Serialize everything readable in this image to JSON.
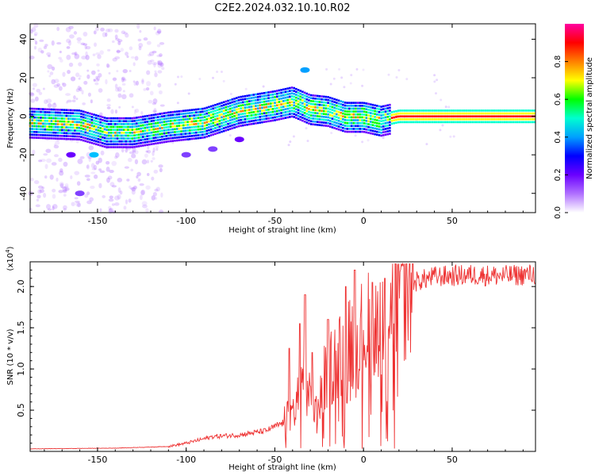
{
  "title": "C2E2.2024.032.10.10.R02",
  "chart_data": [
    {
      "type": "heatmap",
      "title": "C2E2.2024.032.10.10.R02",
      "xlabel": "Height of straight line (km)",
      "ylabel": "Frequency (Hz)",
      "xlim": [
        -188,
        97
      ],
      "ylim": [
        -50,
        48
      ],
      "xticks": [
        -150,
        -100,
        -50,
        0,
        50
      ],
      "xtick_labels": [
        "-150",
        "-100",
        "-50",
        "0",
        "50"
      ],
      "yticks": [
        -40,
        -20,
        0,
        20,
        40
      ],
      "ytick_labels": [
        "-40",
        "-20",
        "0",
        "20",
        "40"
      ],
      "colorbar": {
        "label": "Normalized spectral amplitude",
        "ticks": [
          0.0,
          0.2,
          0.4,
          0.6,
          0.8
        ],
        "tick_labels": [
          "0.0",
          "0.2",
          "0.4",
          "0.6",
          "0.8"
        ],
        "range": [
          0,
          1
        ],
        "colors": [
          "#ffffff",
          "#b070ff",
          "#6a00ff",
          "#0000ff",
          "#00a0ff",
          "#00ffd0",
          "#00ff00",
          "#ffff00",
          "#ff8000",
          "#ff0000",
          "#ff00a0"
        ]
      },
      "ridge": [
        {
          "x": -188,
          "y": -3
        },
        {
          "x": -160,
          "y": -4
        },
        {
          "x": -145,
          "y": -8
        },
        {
          "x": -130,
          "y": -8
        },
        {
          "x": -110,
          "y": -5
        },
        {
          "x": -90,
          "y": -3
        },
        {
          "x": -70,
          "y": 3
        },
        {
          "x": -50,
          "y": 6
        },
        {
          "x": -40,
          "y": 8
        },
        {
          "x": -30,
          "y": 4
        },
        {
          "x": -20,
          "y": 3
        },
        {
          "x": -10,
          "y": 0
        },
        {
          "x": 0,
          "y": 0
        },
        {
          "x": 10,
          "y": -2
        },
        {
          "x": 20,
          "y": 0
        },
        {
          "x": 50,
          "y": 0
        },
        {
          "x": 97,
          "y": 0
        }
      ]
    },
    {
      "type": "line",
      "xlabel": "Height of straight line (km)",
      "ylabel": "SNR (10 * v/v)",
      "multiplier": "(x10^4)",
      "multiplier_base": "(x10",
      "multiplier_exp": "4",
      "multiplier_close": ")",
      "xlim": [
        -188,
        97
      ],
      "ylim": [
        0,
        2.3
      ],
      "xticks": [
        -150,
        -100,
        -50,
        0,
        50
      ],
      "xtick_labels": [
        "-150",
        "-100",
        "-50",
        "0",
        "50"
      ],
      "yticks": [
        0.5,
        1.0,
        1.5,
        2.0
      ],
      "ytick_labels": [
        "0.5",
        "1.0",
        "1.5",
        "2.0"
      ],
      "series": [
        {
          "name": "SNR",
          "color": "#ee3333",
          "envelope": [
            {
              "x": -188,
              "y": 0.03
            },
            {
              "x": -140,
              "y": 0.04
            },
            {
              "x": -110,
              "y": 0.06
            },
            {
              "x": -100,
              "y": 0.1
            },
            {
              "x": -85,
              "y": 0.18
            },
            {
              "x": -70,
              "y": 0.2
            },
            {
              "x": -55,
              "y": 0.25
            },
            {
              "x": -45,
              "y": 0.35
            },
            {
              "x": -38,
              "y": 0.55
            },
            {
              "x": -34,
              "y": 1.0
            },
            {
              "x": -30,
              "y": 0.6
            },
            {
              "x": -26,
              "y": 0.45
            },
            {
              "x": -22,
              "y": 0.9
            },
            {
              "x": -15,
              "y": 1.15
            },
            {
              "x": -8,
              "y": 1.3
            },
            {
              "x": 0,
              "y": 1.45
            },
            {
              "x": 10,
              "y": 1.7
            },
            {
              "x": 20,
              "y": 1.9
            },
            {
              "x": 28,
              "y": 2.05
            },
            {
              "x": 40,
              "y": 2.12
            },
            {
              "x": 60,
              "y": 2.14
            },
            {
              "x": 80,
              "y": 2.13
            },
            {
              "x": 97,
              "y": 2.15
            }
          ],
          "peaks": [
            {
              "x": -42,
              "y": 1.25
            },
            {
              "x": -36,
              "y": 1.55
            },
            {
              "x": -33,
              "y": 1.9
            },
            {
              "x": -29,
              "y": 1.2
            },
            {
              "x": -20,
              "y": 1.6
            },
            {
              "x": -10,
              "y": 2.0
            },
            {
              "x": -5,
              "y": 2.2
            },
            {
              "x": 5,
              "y": 2.05
            },
            {
              "x": 12,
              "y": 2.1
            }
          ]
        }
      ]
    }
  ]
}
